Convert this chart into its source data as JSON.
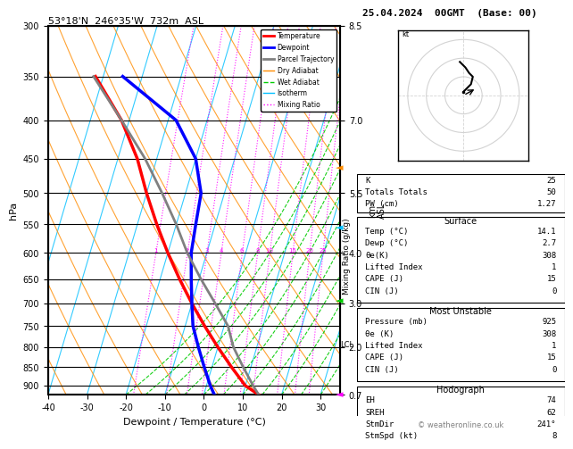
{
  "title_left": "53°18'N  246°35'W  732m  ASL",
  "title_right": "25.04.2024  00GMT  (Base: 00)",
  "xlabel": "Dewpoint / Temperature (°C)",
  "ylabel_left": "hPa",
  "ylabel_right": "km\nASL",
  "ylabel_right2": "Mixing Ratio (g/kg)",
  "pressure_levels": [
    300,
    350,
    400,
    450,
    500,
    550,
    600,
    650,
    700,
    750,
    800,
    850,
    900
  ],
  "xlim": [
    -40,
    35
  ],
  "ylim_p": [
    300,
    925
  ],
  "temp_profile": {
    "temp": [
      14.1,
      10.0,
      5.0,
      0.0,
      -5.0,
      -10.0,
      -15.0,
      -20.0,
      -25.0,
      -30.0,
      -35.0,
      -42.0,
      -52.0
    ],
    "pressure": [
      925,
      900,
      850,
      800,
      750,
      700,
      650,
      600,
      550,
      500,
      450,
      400,
      350
    ],
    "color": "#ff0000",
    "linewidth": 2.5
  },
  "dewp_profile": {
    "dewp": [
      2.7,
      1.0,
      -2.0,
      -5.0,
      -8.0,
      -10.0,
      -12.0,
      -14.0,
      -15.0,
      -16.0,
      -20.0,
      -28.0,
      -45.0
    ],
    "pressure": [
      925,
      900,
      850,
      800,
      750,
      700,
      650,
      600,
      550,
      500,
      450,
      400,
      350
    ],
    "color": "#0000ff",
    "linewidth": 2.5
  },
  "parcel_profile": {
    "temp": [
      14.1,
      12.0,
      8.0,
      4.0,
      1.0,
      -4.0,
      -9.5,
      -15.0,
      -20.0,
      -26.0,
      -33.0,
      -42.0,
      -52.5
    ],
    "pressure": [
      925,
      900,
      850,
      800,
      750,
      700,
      650,
      600,
      550,
      500,
      450,
      400,
      350
    ],
    "color": "#808080",
    "linewidth": 2.0
  },
  "dry_adiabat_color": "#ff8c00",
  "wet_adiabat_color": "#00cc00",
  "isotherm_color": "#00bfff",
  "mixing_ratio_color": "#ff00ff",
  "background_color": "#ffffff",
  "grid_color": "#000000",
  "km_ticks": {
    "pressures": [
      925,
      800,
      700,
      600,
      500,
      400,
      300
    ],
    "km_vals": [
      0.7,
      2.0,
      3.0,
      4.0,
      5.5,
      7.0,
      8.5
    ]
  },
  "mixing_ratio_values": [
    1,
    2,
    3,
    4,
    6,
    8,
    10,
    15,
    20,
    25
  ],
  "lcl_pressure": 800,
  "copyright": "© weatheronline.co.uk",
  "stats": {
    "K": 25,
    "Totals_Totals": 50,
    "PW_cm": 1.27,
    "Surface_Temp": 14.1,
    "Surface_Dewp": 2.7,
    "Surface_theta_e": 308,
    "Surface_LI": 1,
    "Surface_CAPE": 15,
    "Surface_CIN": 0,
    "MU_Pressure": 925,
    "MU_theta_e": 308,
    "MU_LI": 1,
    "MU_CAPE": 15,
    "MU_CIN": 0,
    "EH": 74,
    "SREH": 62,
    "StmDir": 241,
    "StmSpd": 8
  }
}
